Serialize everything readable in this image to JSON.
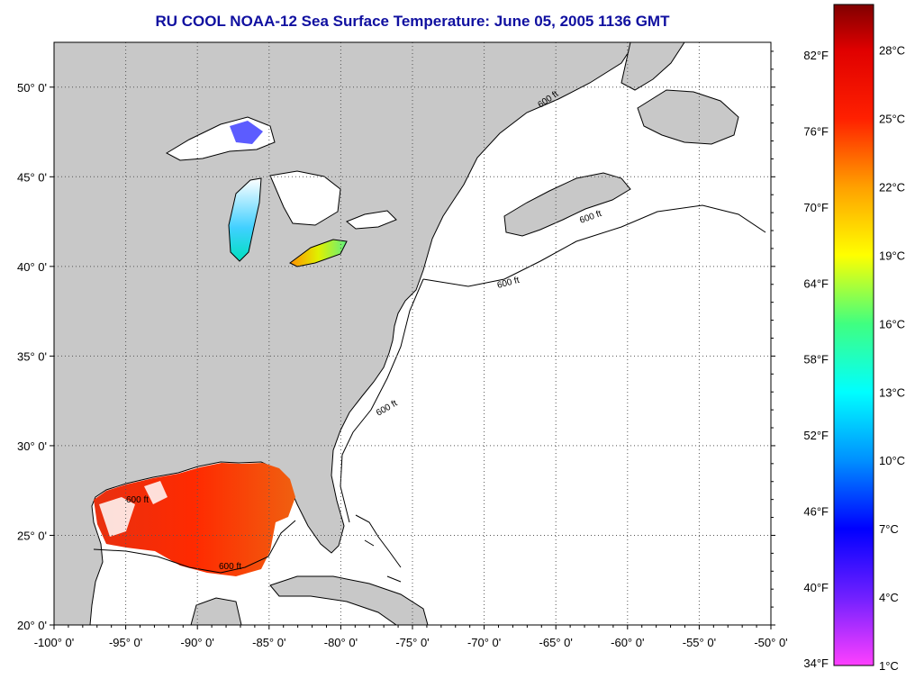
{
  "title": "RU COOL  NOAA-12  Sea Surface Temperature:  June 05, 2005 1136 GMT",
  "map": {
    "lon_range": [
      -100,
      -50
    ],
    "lat_range": [
      20,
      52.5
    ],
    "x_ticks": [
      {
        "value": -100,
        "label": "-100° 0'"
      },
      {
        "value": -95,
        "label": "-95° 0'"
      },
      {
        "value": -90,
        "label": "-90° 0'"
      },
      {
        "value": -85,
        "label": "-85° 0'"
      },
      {
        "value": -80,
        "label": "-80° 0'"
      },
      {
        "value": -75,
        "label": "-75° 0'"
      },
      {
        "value": -70,
        "label": "-70° 0'"
      },
      {
        "value": -65,
        "label": "-65° 0'"
      },
      {
        "value": -60,
        "label": "-60° 0'"
      },
      {
        "value": -55,
        "label": "-55° 0'"
      },
      {
        "value": -50,
        "label": "-50° 0'"
      }
    ],
    "y_ticks": [
      {
        "value": 20,
        "label": "20° 0'"
      },
      {
        "value": 25,
        "label": "25° 0'"
      },
      {
        "value": 30,
        "label": "30° 0'"
      },
      {
        "value": 35,
        "label": "35° 0'"
      },
      {
        "value": 40,
        "label": "40° 0'"
      },
      {
        "value": 45,
        "label": "45° 0'"
      },
      {
        "value": 50,
        "label": "50° 0'"
      }
    ],
    "contour_label": "600 ft",
    "contour_labels_count": 6,
    "land_color": "#c8c8c8",
    "water_color": "#ffffff"
  },
  "colorbar": {
    "fahrenheit_labels": [
      {
        "value": 82,
        "label": "82°F"
      },
      {
        "value": 76,
        "label": "76°F"
      },
      {
        "value": 70,
        "label": "70°F"
      },
      {
        "value": 64,
        "label": "64°F"
      },
      {
        "value": 58,
        "label": "58°F"
      },
      {
        "value": 52,
        "label": "52°F"
      },
      {
        "value": 46,
        "label": "46°F"
      },
      {
        "value": 40,
        "label": "40°F"
      },
      {
        "value": 34,
        "label": "34°F"
      }
    ],
    "celsius_labels": [
      {
        "value": 28,
        "label": "28°C"
      },
      {
        "value": 25,
        "label": "25°C"
      },
      {
        "value": 22,
        "label": "22°C"
      },
      {
        "value": 19,
        "label": "19°C"
      },
      {
        "value": 16,
        "label": "16°C"
      },
      {
        "value": 13,
        "label": "13°C"
      },
      {
        "value": 10,
        "label": "10°C"
      },
      {
        "value": 7,
        "label": "7°C"
      },
      {
        "value": 4,
        "label": "4°C"
      },
      {
        "value": 1,
        "label": "1°C"
      }
    ],
    "range_c": [
      1,
      30
    ],
    "stops": [
      {
        "c": 1,
        "color": "#ff40ff"
      },
      {
        "c": 4,
        "color": "#7020ff"
      },
      {
        "c": 7,
        "color": "#0000ff"
      },
      {
        "c": 10,
        "color": "#0090ff"
      },
      {
        "c": 13,
        "color": "#00ffff"
      },
      {
        "c": 16,
        "color": "#40ff80"
      },
      {
        "c": 19,
        "color": "#ffff00"
      },
      {
        "c": 22,
        "color": "#ffa000"
      },
      {
        "c": 25,
        "color": "#ff2000"
      },
      {
        "c": 28,
        "color": "#e00000"
      },
      {
        "c": 30,
        "color": "#800000"
      }
    ]
  }
}
